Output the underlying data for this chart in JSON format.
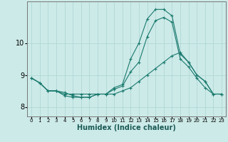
{
  "xlabel": "Humidex (Indice chaleur)",
  "ylabel": "",
  "bg_color": "#cceae8",
  "grid_color": "#b0d8d5",
  "line_color": "#1a7a6e",
  "xlim": [
    -0.5,
    23.5
  ],
  "ylim": [
    7.7,
    11.3
  ],
  "yticks": [
    8,
    9,
    10
  ],
  "xticks": [
    0,
    1,
    2,
    3,
    4,
    5,
    6,
    7,
    8,
    9,
    10,
    11,
    12,
    13,
    14,
    15,
    16,
    17,
    18,
    19,
    20,
    21,
    22,
    23
  ],
  "series1_x": [
    0,
    1,
    2,
    3,
    4,
    5,
    6,
    7,
    8,
    9,
    10,
    11,
    12,
    13,
    14,
    15,
    16,
    17,
    18,
    19,
    20,
    21,
    22,
    23
  ],
  "series1_y": [
    8.9,
    8.75,
    8.5,
    8.5,
    8.45,
    8.35,
    8.3,
    8.3,
    8.4,
    8.4,
    8.6,
    8.7,
    9.5,
    10.0,
    10.75,
    11.05,
    11.05,
    10.85,
    9.65,
    9.4,
    9.0,
    8.8,
    8.4,
    8.4
  ],
  "series2_x": [
    0,
    1,
    2,
    3,
    4,
    5,
    6,
    7,
    8,
    9,
    10,
    11,
    12,
    13,
    14,
    15,
    16,
    17,
    18,
    19,
    20,
    21,
    22,
    23
  ],
  "series2_y": [
    8.9,
    8.75,
    8.5,
    8.5,
    8.35,
    8.3,
    8.3,
    8.3,
    8.4,
    8.4,
    8.55,
    8.65,
    9.1,
    9.4,
    10.2,
    10.7,
    10.8,
    10.65,
    9.5,
    9.25,
    8.9,
    8.6,
    8.4,
    8.4
  ],
  "series3_x": [
    0,
    1,
    2,
    3,
    4,
    5,
    6,
    7,
    8,
    9,
    10,
    11,
    12,
    13,
    14,
    15,
    16,
    17,
    18,
    19,
    20,
    21,
    22,
    23
  ],
  "series3_y": [
    8.9,
    8.75,
    8.5,
    8.5,
    8.4,
    8.4,
    8.4,
    8.4,
    8.4,
    8.4,
    8.4,
    8.5,
    8.6,
    8.8,
    9.0,
    9.2,
    9.4,
    9.6,
    9.7,
    9.4,
    9.0,
    8.8,
    8.4,
    8.4
  ],
  "xtick_fontsize": 5,
  "ytick_fontsize": 7,
  "xlabel_fontsize": 7
}
